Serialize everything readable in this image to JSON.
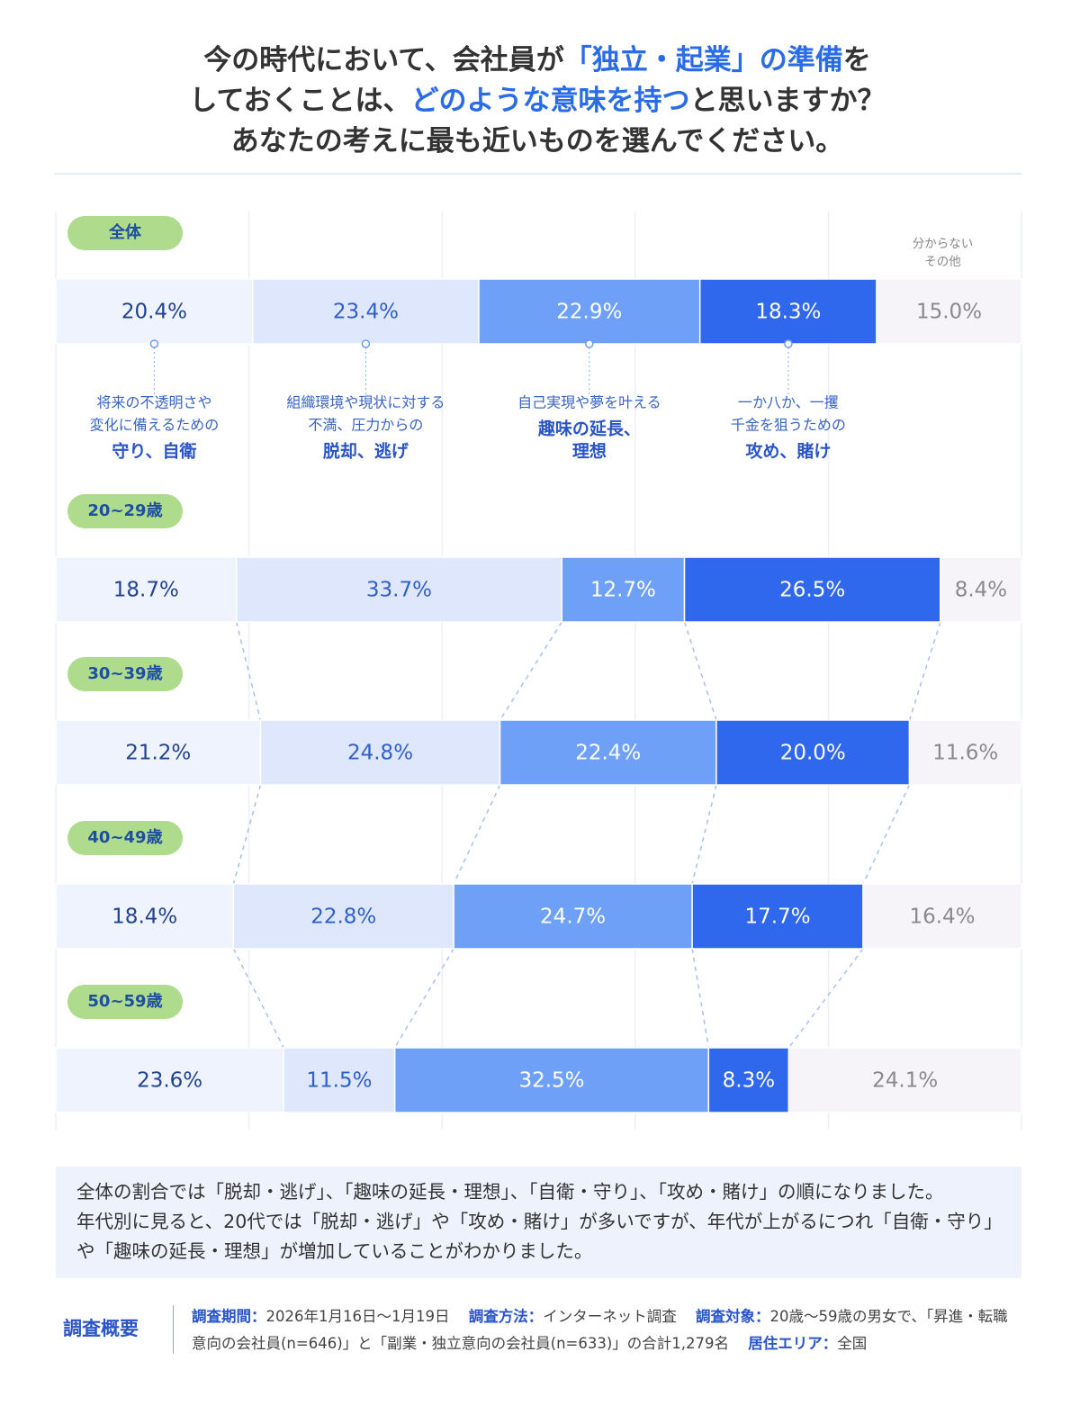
{
  "title": [
    [
      {
        "text": "今の時代において、会社員が",
        "color": "#333333"
      },
      {
        "text": "「独立・起業」の準備",
        "color": "#2a6ce8"
      },
      {
        "text": "を",
        "color": "#333333"
      }
    ],
    [
      {
        "text": "しておくことは、",
        "color": "#333333"
      },
      {
        "text": "どのような意味を持つ",
        "color": "#2a6ce8"
      },
      {
        "text": "と思いますか？",
        "color": "#333333"
      }
    ],
    [
      {
        "text": "あなたの考えに最も近いものを選んでください。",
        "color": "#333333"
      }
    ]
  ],
  "chart_data": {
    "type": "bar",
    "orientation": "horizontal",
    "stacked": true,
    "categories": [
      "全体",
      "20~29歳",
      "30~39歳",
      "40~49歳",
      "50~59歳"
    ],
    "xlim": [
      0,
      100
    ],
    "xticks": [
      0,
      20,
      40,
      60,
      80,
      100
    ],
    "grid": true,
    "series": [
      {
        "name": [
          "守り、自衛"
        ],
        "note": [
          "将来の不透明さや",
          "変化に備えるための"
        ],
        "color": "#eef3fd",
        "label_color": "#22448f",
        "values": [
          20.4,
          18.7,
          21.2,
          18.4,
          23.6
        ],
        "value_labels": [
          "20.4%",
          "18.7%",
          "21.2%",
          "18.4%",
          "23.6%"
        ]
      },
      {
        "name": [
          "脱却、逃げ"
        ],
        "note": [
          "組織環境や現状に対する",
          "不満、圧力からの"
        ],
        "color": "#dee7fc",
        "label_color": "#2f5fc8",
        "values": [
          23.4,
          33.7,
          24.8,
          22.8,
          11.5
        ],
        "value_labels": [
          "23.4%",
          "33.7%",
          "24.8%",
          "22.8%",
          "11.5%"
        ]
      },
      {
        "name": [
          "趣味の延長、",
          "理想"
        ],
        "note": [
          "自己実現や夢を叶える"
        ],
        "color": "#6fa0f7",
        "label_color": "#ffffff",
        "values": [
          22.9,
          12.7,
          22.4,
          24.7,
          32.5
        ],
        "value_labels": [
          "22.9%",
          "12.7%",
          "22.4%",
          "24.7%",
          "32.5%"
        ]
      },
      {
        "name": [
          "攻め、賭け"
        ],
        "note": [
          "一か八か、一攫",
          "千金を狙うための"
        ],
        "color": "#2f68ec",
        "label_color": "#ffffff",
        "values": [
          18.3,
          26.5,
          20.0,
          17.7,
          8.3
        ],
        "value_labels": [
          "18.3%",
          "26.5%",
          "20.0%",
          "17.7%",
          "8.3%"
        ]
      },
      {
        "name": [
          "分からない",
          "その他"
        ],
        "color": "#f6f4f8",
        "label_color": "#8a8a8a",
        "values": [
          15.0,
          8.4,
          11.6,
          16.4,
          24.1
        ],
        "value_labels": [
          "15.0%",
          "8.4%",
          "11.6%",
          "16.4%",
          "24.1%"
        ]
      }
    ]
  },
  "summary": [
    "全体の割合では「脱却・逃げ」、「趣味の延長・理想」、「自衛・守り」、「攻め・賭け」の順になりました。",
    "年代別に見ると、20代では「脱却・逃げ」や「攻め・賭け」が多いですが、年代が上がるにつれ「自衛・守り」や「趣味の延長・理想」が増加していることがわかりました。"
  ],
  "survey": {
    "heading": "調査概要",
    "items": [
      {
        "label": "調査期間：",
        "text": "2026年1月16日〜1月19日"
      },
      {
        "label": "調査方法：",
        "text": "インターネット調査"
      },
      {
        "label": "調査対象：",
        "text": "20歳〜59歳の男女で、「昇進・転職意向の会社員(n=646)」と「副業・独立意向の会社員(n=633)」の合計1,279名"
      },
      {
        "label": "居住エリア：",
        "text": "全国"
      }
    ]
  }
}
